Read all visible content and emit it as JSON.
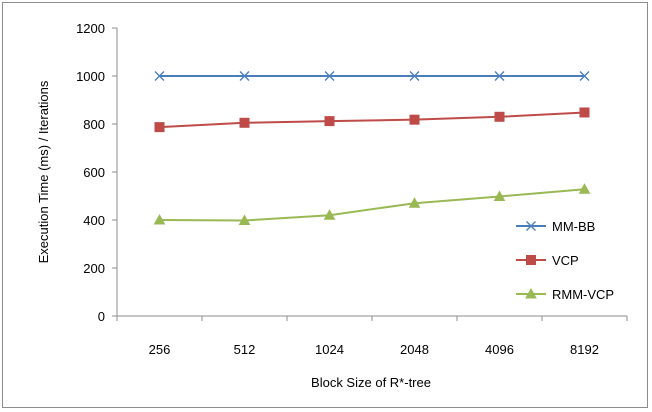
{
  "chart_data": {
    "type": "line",
    "categories": [
      "256",
      "512",
      "1024",
      "2048",
      "4096",
      "8192"
    ],
    "series": [
      {
        "name": "MM-BB",
        "values": [
          1000,
          1000,
          1000,
          1000,
          1000,
          1000
        ],
        "color": "#4a7ebb",
        "marker": "x"
      },
      {
        "name": "VCP",
        "values": [
          787,
          805,
          812,
          818,
          830,
          848
        ],
        "color": "#be4b48",
        "marker": "square"
      },
      {
        "name": "RMM-VCP",
        "values": [
          400,
          398,
          420,
          470,
          498,
          528
        ],
        "color": "#98b954",
        "marker": "triangle"
      }
    ],
    "title": "",
    "xlabel": "Block Size of R*-tree",
    "ylabel": "Execution Time (ms) / Iterations",
    "ylim": [
      0,
      1200
    ],
    "yticks": [
      0,
      200,
      400,
      600,
      800,
      1000,
      1200
    ],
    "grid": false,
    "legend_position": "right"
  }
}
